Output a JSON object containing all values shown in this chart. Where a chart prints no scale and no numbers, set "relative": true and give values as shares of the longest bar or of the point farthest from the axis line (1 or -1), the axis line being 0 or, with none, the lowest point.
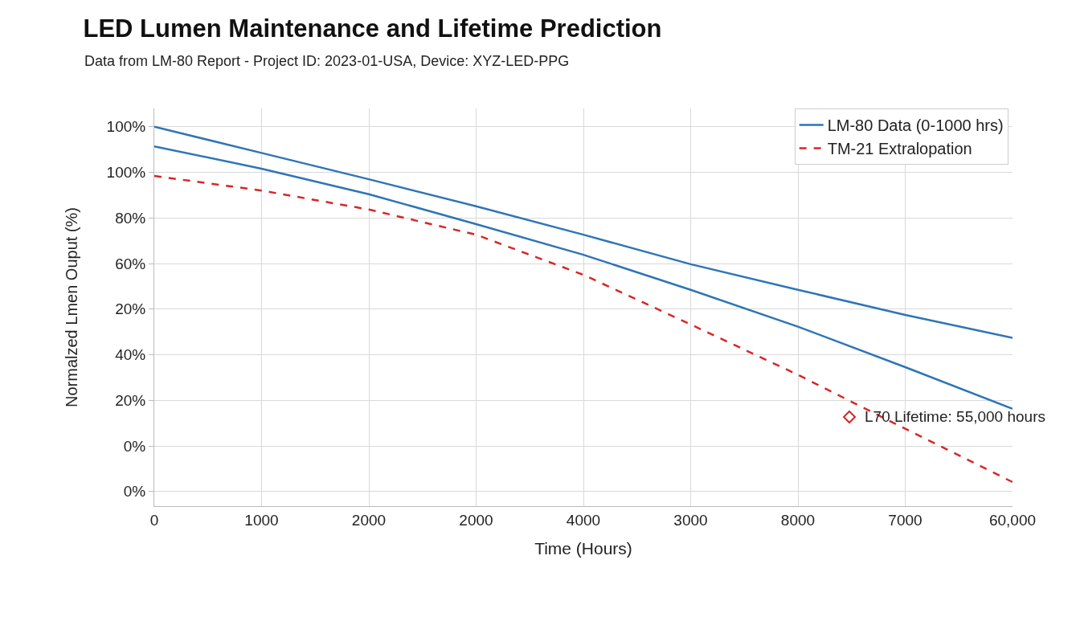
{
  "chart_data": {
    "type": "line",
    "title": "LED Lumen Maintenance and Lifetime Prediction",
    "subtitle": "Data from LM-80 Report - Project ID: 2023-01-USA, Device: XYZ-LED-PPG",
    "xlabel": "Time (Hours)",
    "ylabel": "Normalzed Lmen Ouput (%)",
    "categories": [
      "0",
      "1000",
      "2000",
      "2000",
      "4000",
      "3000",
      "8000",
      "7000",
      "60,000"
    ],
    "relative": true,
    "series": [
      {
        "name": "LM-80 Data (0-1000 hrs)",
        "color": "#2e75b6",
        "values": [
          1,
          0.928,
          0.856,
          0.782,
          0.704,
          0.623,
          0.553,
          0.484,
          0.421
        ],
        "line_style": "solid"
      },
      {
        "color": "#2e75b6",
        "values": [
          0.946,
          0.885,
          0.815,
          0.733,
          0.649,
          0.553,
          0.452,
          0.341,
          0.227
        ],
        "line_style": "solid"
      },
      {
        "name": "TM-21 Extralopation",
        "color": "#d62728",
        "values": [
          0.865,
          0.825,
          0.773,
          0.704,
          0.594,
          0.458,
          0.32,
          0.172,
          0.026
        ],
        "line_style": "dashed"
      }
    ],
    "annotations": [
      "100%",
      "100%",
      "80%",
      "60%",
      "20%",
      "40%",
      "20%",
      "0%",
      "0%",
      "L70 Lifetime: 55,000 hours"
    ],
    "grid": true,
    "legend": "top right",
    "marker": "none"
  }
}
